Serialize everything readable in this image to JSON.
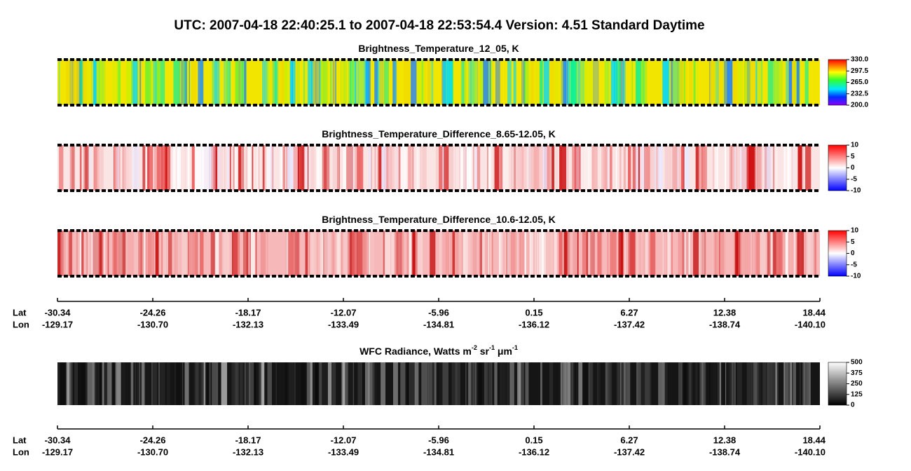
{
  "header": {
    "title": "UTC:  2007-04-18   22:40:25.1  to  2007-04-18   22:53:54.4    Version: 4.51  Standard Daytime"
  },
  "panels": [
    {
      "title": [
        "Brightness_Temperature_12_05, K"
      ],
      "colorbar": [
        "330.0",
        "297.5",
        "265.0",
        "232.5",
        "200.0"
      ]
    },
    {
      "title": [
        "Brightness_Temperature_Difference_8.65-12.05, K"
      ],
      "colorbar": [
        "10",
        "5",
        "0",
        "-5",
        "-10"
      ]
    },
    {
      "title": [
        "Brightness_Temperature_Difference_10.6-12.05, K"
      ],
      "colorbar": [
        "10",
        "5",
        "0",
        "-5",
        "-10"
      ]
    },
    {
      "title": [
        "WFC Radiance, Watts m",
        "-2",
        " sr",
        "-1",
        " μm",
        "-1"
      ],
      "colorbar": [
        "500",
        "375",
        "250",
        "125",
        "0"
      ]
    }
  ],
  "axis": {
    "lat_label": "Lat",
    "lon_label": "Lon",
    "lat": [
      "-30.34",
      "-24.26",
      "-18.17",
      "-12.07",
      "-5.96",
      "0.15",
      "6.27",
      "12.38",
      "18.44"
    ],
    "lon": [
      "-129.17",
      "-130.70",
      "-132.13",
      "-133.49",
      "-134.81",
      "-136.12",
      "-137.42",
      "-138.74",
      "-140.10"
    ]
  }
}
